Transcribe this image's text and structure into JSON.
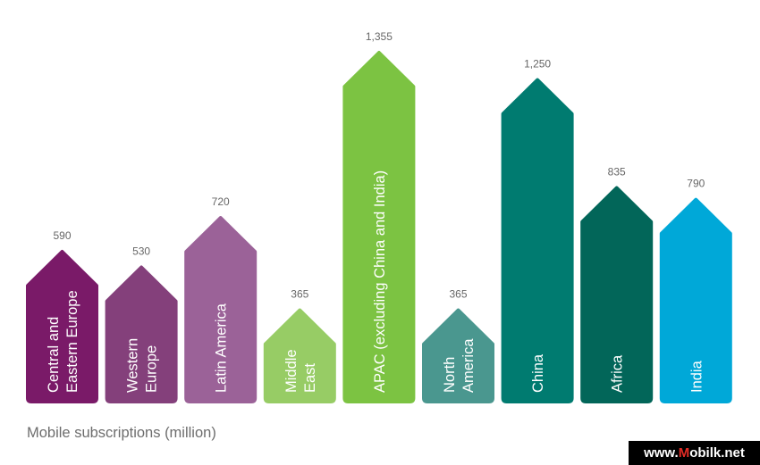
{
  "chart_data": {
    "type": "bar",
    "categories": [
      "Central and Eastern Europe",
      "Western Europe",
      "Latin America",
      "Middle East",
      "APAC (excluding China and India)",
      "North America",
      "China",
      "Africa",
      "India"
    ],
    "label_lines": [
      [
        "Central and",
        "Eastern Europe"
      ],
      [
        "Western",
        "Europe"
      ],
      [
        "Latin America"
      ],
      [
        "Middle",
        "East"
      ],
      [
        "APAC (excluding China and India)"
      ],
      [
        "North",
        "America"
      ],
      [
        "China"
      ],
      [
        "Africa"
      ],
      [
        "India"
      ]
    ],
    "values": [
      590,
      530,
      720,
      365,
      1355,
      365,
      1250,
      835,
      790
    ],
    "value_labels": [
      "590",
      "530",
      "720",
      "365",
      "1,355",
      "365",
      "1,250",
      "835",
      "790"
    ],
    "colors": [
      "#7a1a68",
      "#84407b",
      "#9b6298",
      "#97cc65",
      "#7cc342",
      "#4a978f",
      "#007b70",
      "#026659",
      "#00a8d8"
    ],
    "ylim": [
      0,
      1355
    ],
    "xlabel": "Mobile subscriptions (million)",
    "ylabel": "",
    "title": "",
    "grid": false,
    "legend": "none"
  },
  "watermark": {
    "prefix": "www.",
    "accent": "M",
    "suffix": "obilk.net"
  }
}
